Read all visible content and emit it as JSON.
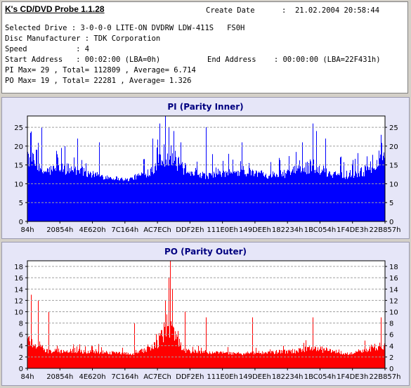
{
  "app": {
    "title": "K's CD/DVD Probe 1.1.28"
  },
  "info": {
    "create_date_label": "Create Date",
    "create_date_value": ":  21.02.2004 20:58:44",
    "selected_drive": "Selected Drive : 3-0-0-0 LITE-ON DVDRW LDW-411S   FS0H",
    "disc_manufacturer": "Disc Manufacturer : TDK Corporation",
    "speed": "Speed           : 4",
    "start_address": "Start Address   : 00:02:00 (LBA=0h)",
    "end_address": "End Address    : 00:00:00 (LBA=22F431h)",
    "pi_stats": "PI Max= 29 , Total= 112809 , Average= 6.714",
    "po_stats": "PO Max= 19 , Total= 22281 , Average= 1.326"
  },
  "chart_data": [
    {
      "type": "bar",
      "title": "PI (Parity Inner)",
      "color": "#0000ff",
      "ylim": [
        0,
        28
      ],
      "yticks": [
        0,
        5,
        10,
        15,
        20,
        25
      ],
      "xticks": [
        "84h",
        "20854h",
        "4E620h",
        "7C164h",
        "AC7ECh",
        "DDF2Eh",
        "111E0Eh",
        "149DEEh",
        "182234h",
        "1BC054h",
        "1F4DE3h",
        "22B857h"
      ],
      "grid": true,
      "baseline": 10,
      "profile": [
        [
          0.0,
          17
        ],
        [
          0.04,
          13
        ],
        [
          0.1,
          14
        ],
        [
          0.2,
          12
        ],
        [
          0.28,
          11
        ],
        [
          0.34,
          13
        ],
        [
          0.37,
          16
        ],
        [
          0.39,
          18
        ],
        [
          0.405,
          17
        ],
        [
          0.43,
          14
        ],
        [
          0.5,
          12
        ],
        [
          0.6,
          13
        ],
        [
          0.7,
          12
        ],
        [
          0.78,
          14
        ],
        [
          0.8,
          15
        ],
        [
          0.82,
          13
        ],
        [
          0.9,
          12
        ],
        [
          0.97,
          14
        ],
        [
          1.0,
          18
        ]
      ],
      "peaks": [
        [
          0.025,
          19
        ],
        [
          0.04,
          25
        ],
        [
          0.14,
          22
        ],
        [
          0.2,
          21
        ],
        [
          0.35,
          22
        ],
        [
          0.37,
          26
        ],
        [
          0.385,
          28
        ],
        [
          0.395,
          25
        ],
        [
          0.41,
          24
        ],
        [
          0.43,
          21
        ],
        [
          0.5,
          25
        ],
        [
          0.6,
          21
        ],
        [
          0.77,
          21
        ],
        [
          0.8,
          26
        ],
        [
          0.81,
          24
        ],
        [
          0.835,
          22
        ],
        [
          0.99,
          23
        ]
      ]
    },
    {
      "type": "bar",
      "title": "PO (Parity Outer)",
      "color": "#ff0000",
      "ylim": [
        0,
        19
      ],
      "yticks": [
        0,
        2,
        4,
        6,
        8,
        10,
        12,
        14,
        16,
        18
      ],
      "xticks": [
        "84h",
        "20854h",
        "4E620h",
        "7C164h",
        "AC7ECh",
        "DDF2Eh",
        "111E0Eh",
        "149DEEh",
        "182234h",
        "1BC054h",
        "1F4DE3h",
        "22B857h"
      ],
      "grid": true,
      "baseline": 2,
      "profile": [
        [
          0.0,
          5
        ],
        [
          0.05,
          3
        ],
        [
          0.15,
          3
        ],
        [
          0.3,
          2.5
        ],
        [
          0.36,
          4
        ],
        [
          0.38,
          6
        ],
        [
          0.395,
          8
        ],
        [
          0.405,
          6
        ],
        [
          0.44,
          3
        ],
        [
          0.6,
          2.5
        ],
        [
          0.75,
          3
        ],
        [
          0.8,
          3.5
        ],
        [
          0.9,
          2.5
        ],
        [
          1.0,
          4
        ]
      ],
      "peaks": [
        [
          0.01,
          13
        ],
        [
          0.03,
          12
        ],
        [
          0.06,
          10
        ],
        [
          0.3,
          8
        ],
        [
          0.385,
          12
        ],
        [
          0.395,
          16
        ],
        [
          0.4,
          19
        ],
        [
          0.405,
          14
        ],
        [
          0.44,
          10
        ],
        [
          0.5,
          9
        ],
        [
          0.63,
          9
        ],
        [
          0.8,
          9
        ],
        [
          0.99,
          9
        ]
      ]
    }
  ]
}
